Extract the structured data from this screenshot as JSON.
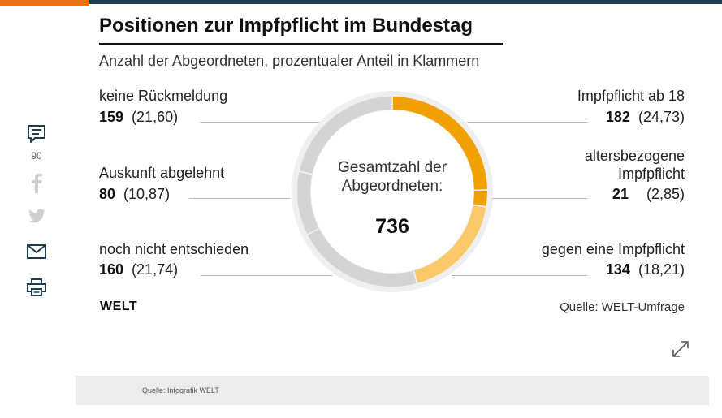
{
  "sidebar": {
    "comment_count": "90",
    "icons": [
      "comment-icon",
      "facebook-icon",
      "twitter-icon",
      "mail-icon",
      "print-icon"
    ],
    "colors": {
      "active": "#1c3d52",
      "inactive": "#d0d0d0"
    }
  },
  "chart_data": {
    "type": "pie",
    "style": "donut",
    "title": "Positionen zur Impfpflicht im Bundestag",
    "subtitle": "Anzahl der Abgeordneten, prozentualer Anteil in Klammern",
    "center_label": "Gesamtzahl der Abgeordneten:",
    "total": "736",
    "categories": [
      "Impfpflicht ab 18",
      "altersbezogene Impfpflicht",
      "gegen eine Impfpflicht",
      "noch nicht entschieden",
      "Auskunft abgelehnt",
      "keine Rückmeldung"
    ],
    "values": [
      182,
      21,
      134,
      160,
      80,
      159
    ],
    "value_labels": [
      "182",
      "21",
      "134",
      "160",
      "80",
      "159"
    ],
    "percent_labels": [
      "(24,73)",
      "(2,85)",
      "(18,21)",
      "(21,74)",
      "(10,87)",
      "(21,60)"
    ],
    "colors": [
      "#f0a000",
      "#f0a000",
      "#fbc96a",
      "#d4d4d4",
      "#d4d4d4",
      "#d4d4d4"
    ],
    "source": "Quelle: WELT-Umfrage"
  },
  "branding": {
    "logo": "WELT"
  },
  "footer": {
    "caption": "Quelle: Infografik WELT"
  }
}
